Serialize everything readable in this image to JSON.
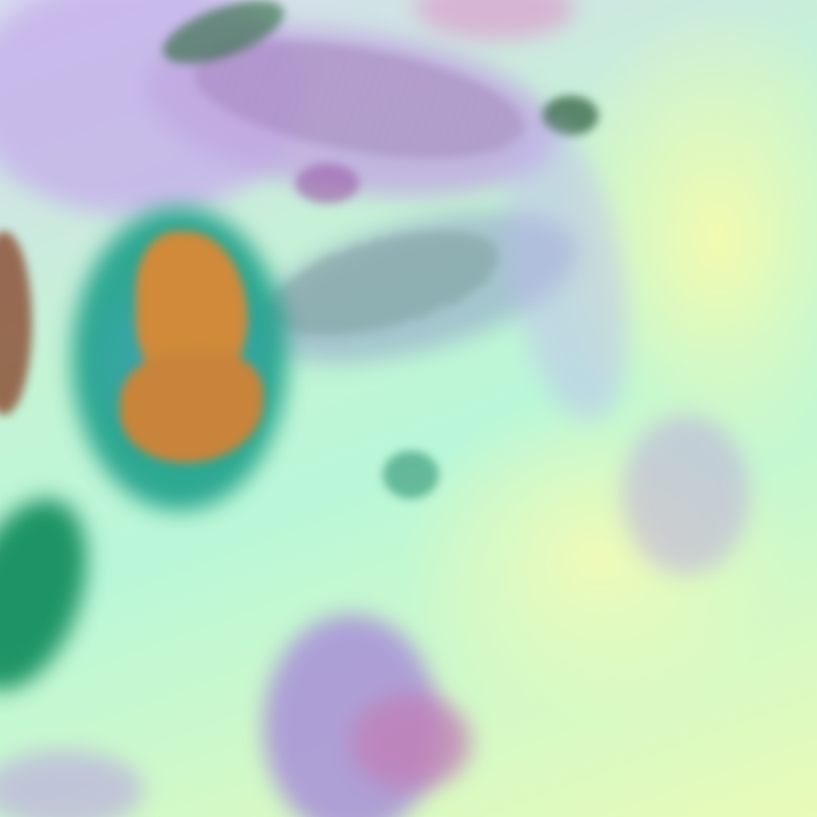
{
  "image": {
    "description_type": "false-color satellite imagery",
    "colors": {
      "background_land": "#c4f4d4",
      "bright_east": "#f2fbb0",
      "cloud_purple": "#b8a4e0",
      "cloud_dark_green": "#1f6a40",
      "deep_convection_orange": "#d08a3a",
      "convection_teal": "#1ea08a",
      "southern_purple": "#a890d8"
    }
  }
}
